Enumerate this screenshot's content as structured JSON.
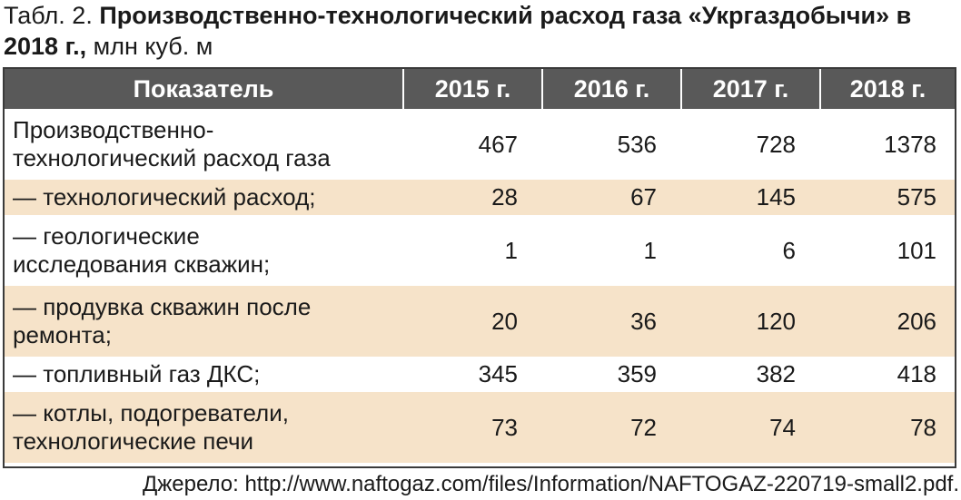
{
  "title": {
    "prefix": "Табл. 2. ",
    "bold": "Производственно-технологический расход газа «Укргаздобычи» в 2018 г.,",
    "unit": " млн куб. м"
  },
  "table": {
    "headers": [
      "Показатель",
      "2015 г.",
      "2016 г.",
      "2017 г.",
      "2018 г."
    ],
    "rows": [
      {
        "label_lines": [
          "Производственно-",
          "технологический расход газа"
        ],
        "values": [
          "467",
          "536",
          "728",
          "1378"
        ]
      },
      {
        "label_lines": [
          "— технологический расход;"
        ],
        "values": [
          "28",
          "67",
          "145",
          "575"
        ]
      },
      {
        "label_lines": [
          "— геологические",
          "исследования скважин;"
        ],
        "values": [
          "1",
          "1",
          "6",
          "101"
        ]
      },
      {
        "label_lines": [
          "— продувка скважин после",
          "ремонта;"
        ],
        "values": [
          "20",
          "36",
          "120",
          "206"
        ]
      },
      {
        "label_lines": [
          "— топливный газ ДКС;"
        ],
        "values": [
          "345",
          "359",
          "382",
          "418"
        ]
      },
      {
        "label_lines": [
          "— котлы, подогреватели,",
          "технологические печи"
        ],
        "values": [
          "73",
          "72",
          "74",
          "78"
        ]
      }
    ]
  },
  "source": "Джерело: http://www.naftogaz.com/files/Information/NAFTOGAZ-220719-small2.pdf.",
  "colors": {
    "header_bg": "#595959",
    "band_bg": "#f6e3c9",
    "text": "#1a1a1a"
  }
}
